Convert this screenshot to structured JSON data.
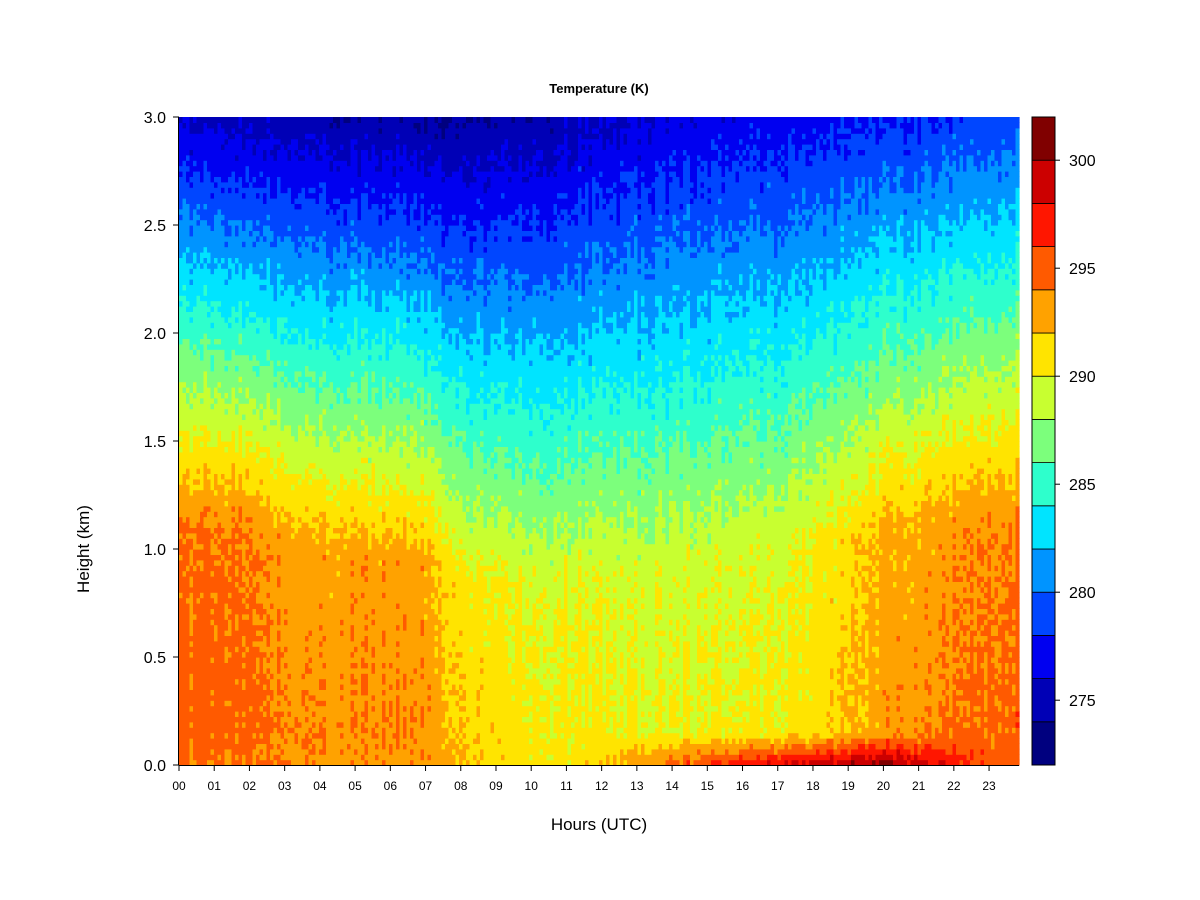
{
  "chart_data": {
    "type": "heatmap",
    "title": "Temperature (K)",
    "xlabel": "Hours (UTC)",
    "ylabel": "Height (km)",
    "x_ticks": [
      "00",
      "01",
      "02",
      "03",
      "04",
      "05",
      "06",
      "07",
      "08",
      "09",
      "10",
      "11",
      "12",
      "13",
      "14",
      "15",
      "16",
      "17",
      "18",
      "19",
      "20",
      "21",
      "22",
      "23"
    ],
    "y_ticks": [
      "0.0",
      "0.5",
      "1.0",
      "1.5",
      "2.0",
      "2.5",
      "3.0"
    ],
    "xlim": [
      0,
      23.85
    ],
    "ylim": [
      0,
      3.0
    ],
    "colorbar": {
      "range": [
        272,
        302
      ],
      "step": 2,
      "tick_values": [
        275,
        280,
        285,
        290,
        295,
        300
      ],
      "tick_labels": [
        "275",
        "280",
        "285",
        "290",
        "295",
        "300"
      ],
      "colors": [
        "#00007F",
        "#0000B6",
        "#0000F0",
        "#0046FF",
        "#0094FF",
        "#00E4FF",
        "#2EFFCC",
        "#7CFF7C",
        "#C8FF30",
        "#FFE400",
        "#FFA200",
        "#FF5A00",
        "#FF1600",
        "#CC0000",
        "#800000"
      ]
    },
    "profiles": {
      "hours": [
        0,
        1,
        2,
        3,
        4,
        5,
        6,
        7,
        8,
        9,
        10,
        11,
        12,
        13,
        14,
        15,
        16,
        17,
        18,
        19,
        20,
        21,
        22,
        23,
        23.85
      ],
      "surface_K": [
        294.5,
        294.3,
        294.0,
        294.0,
        293.5,
        293.5,
        293.4,
        293.2,
        292.2,
        291.2,
        290.8,
        290.8,
        291.8,
        293.5,
        294.8,
        296.0,
        297.5,
        298.3,
        299.2,
        299.8,
        300.2,
        299.2,
        297.0,
        295.5,
        294.8
      ],
      "boundary_top_K": [
        294.8,
        295.0,
        294.7,
        294.0,
        293.6,
        293.8,
        293.8,
        293.6,
        291.8,
        291.0,
        290.6,
        290.6,
        290.4,
        290.2,
        290.0,
        290.3,
        290.4,
        290.4,
        291.0,
        292.0,
        293.0,
        293.6,
        294.2,
        294.8,
        295.0
      ],
      "mixed_layer_top_km": [
        1.1,
        1.1,
        1.1,
        1.05,
        1.0,
        1.0,
        0.95,
        0.95,
        0.85,
        0.85,
        0.85,
        0.85,
        0.9,
        0.9,
        0.95,
        0.95,
        1.0,
        1.0,
        1.05,
        1.05,
        1.1,
        1.1,
        1.1,
        1.1,
        1.1
      ],
      "top_K": [
        275.5,
        275.3,
        275.0,
        274.8,
        274.5,
        274.4,
        274.3,
        274.0,
        274.0,
        274.2,
        274.6,
        275.0,
        275.5,
        276.0,
        276.3,
        276.5,
        276.8,
        276.8,
        277.0,
        277.2,
        277.5,
        277.8,
        278.2,
        278.7,
        279.0
      ]
    }
  }
}
